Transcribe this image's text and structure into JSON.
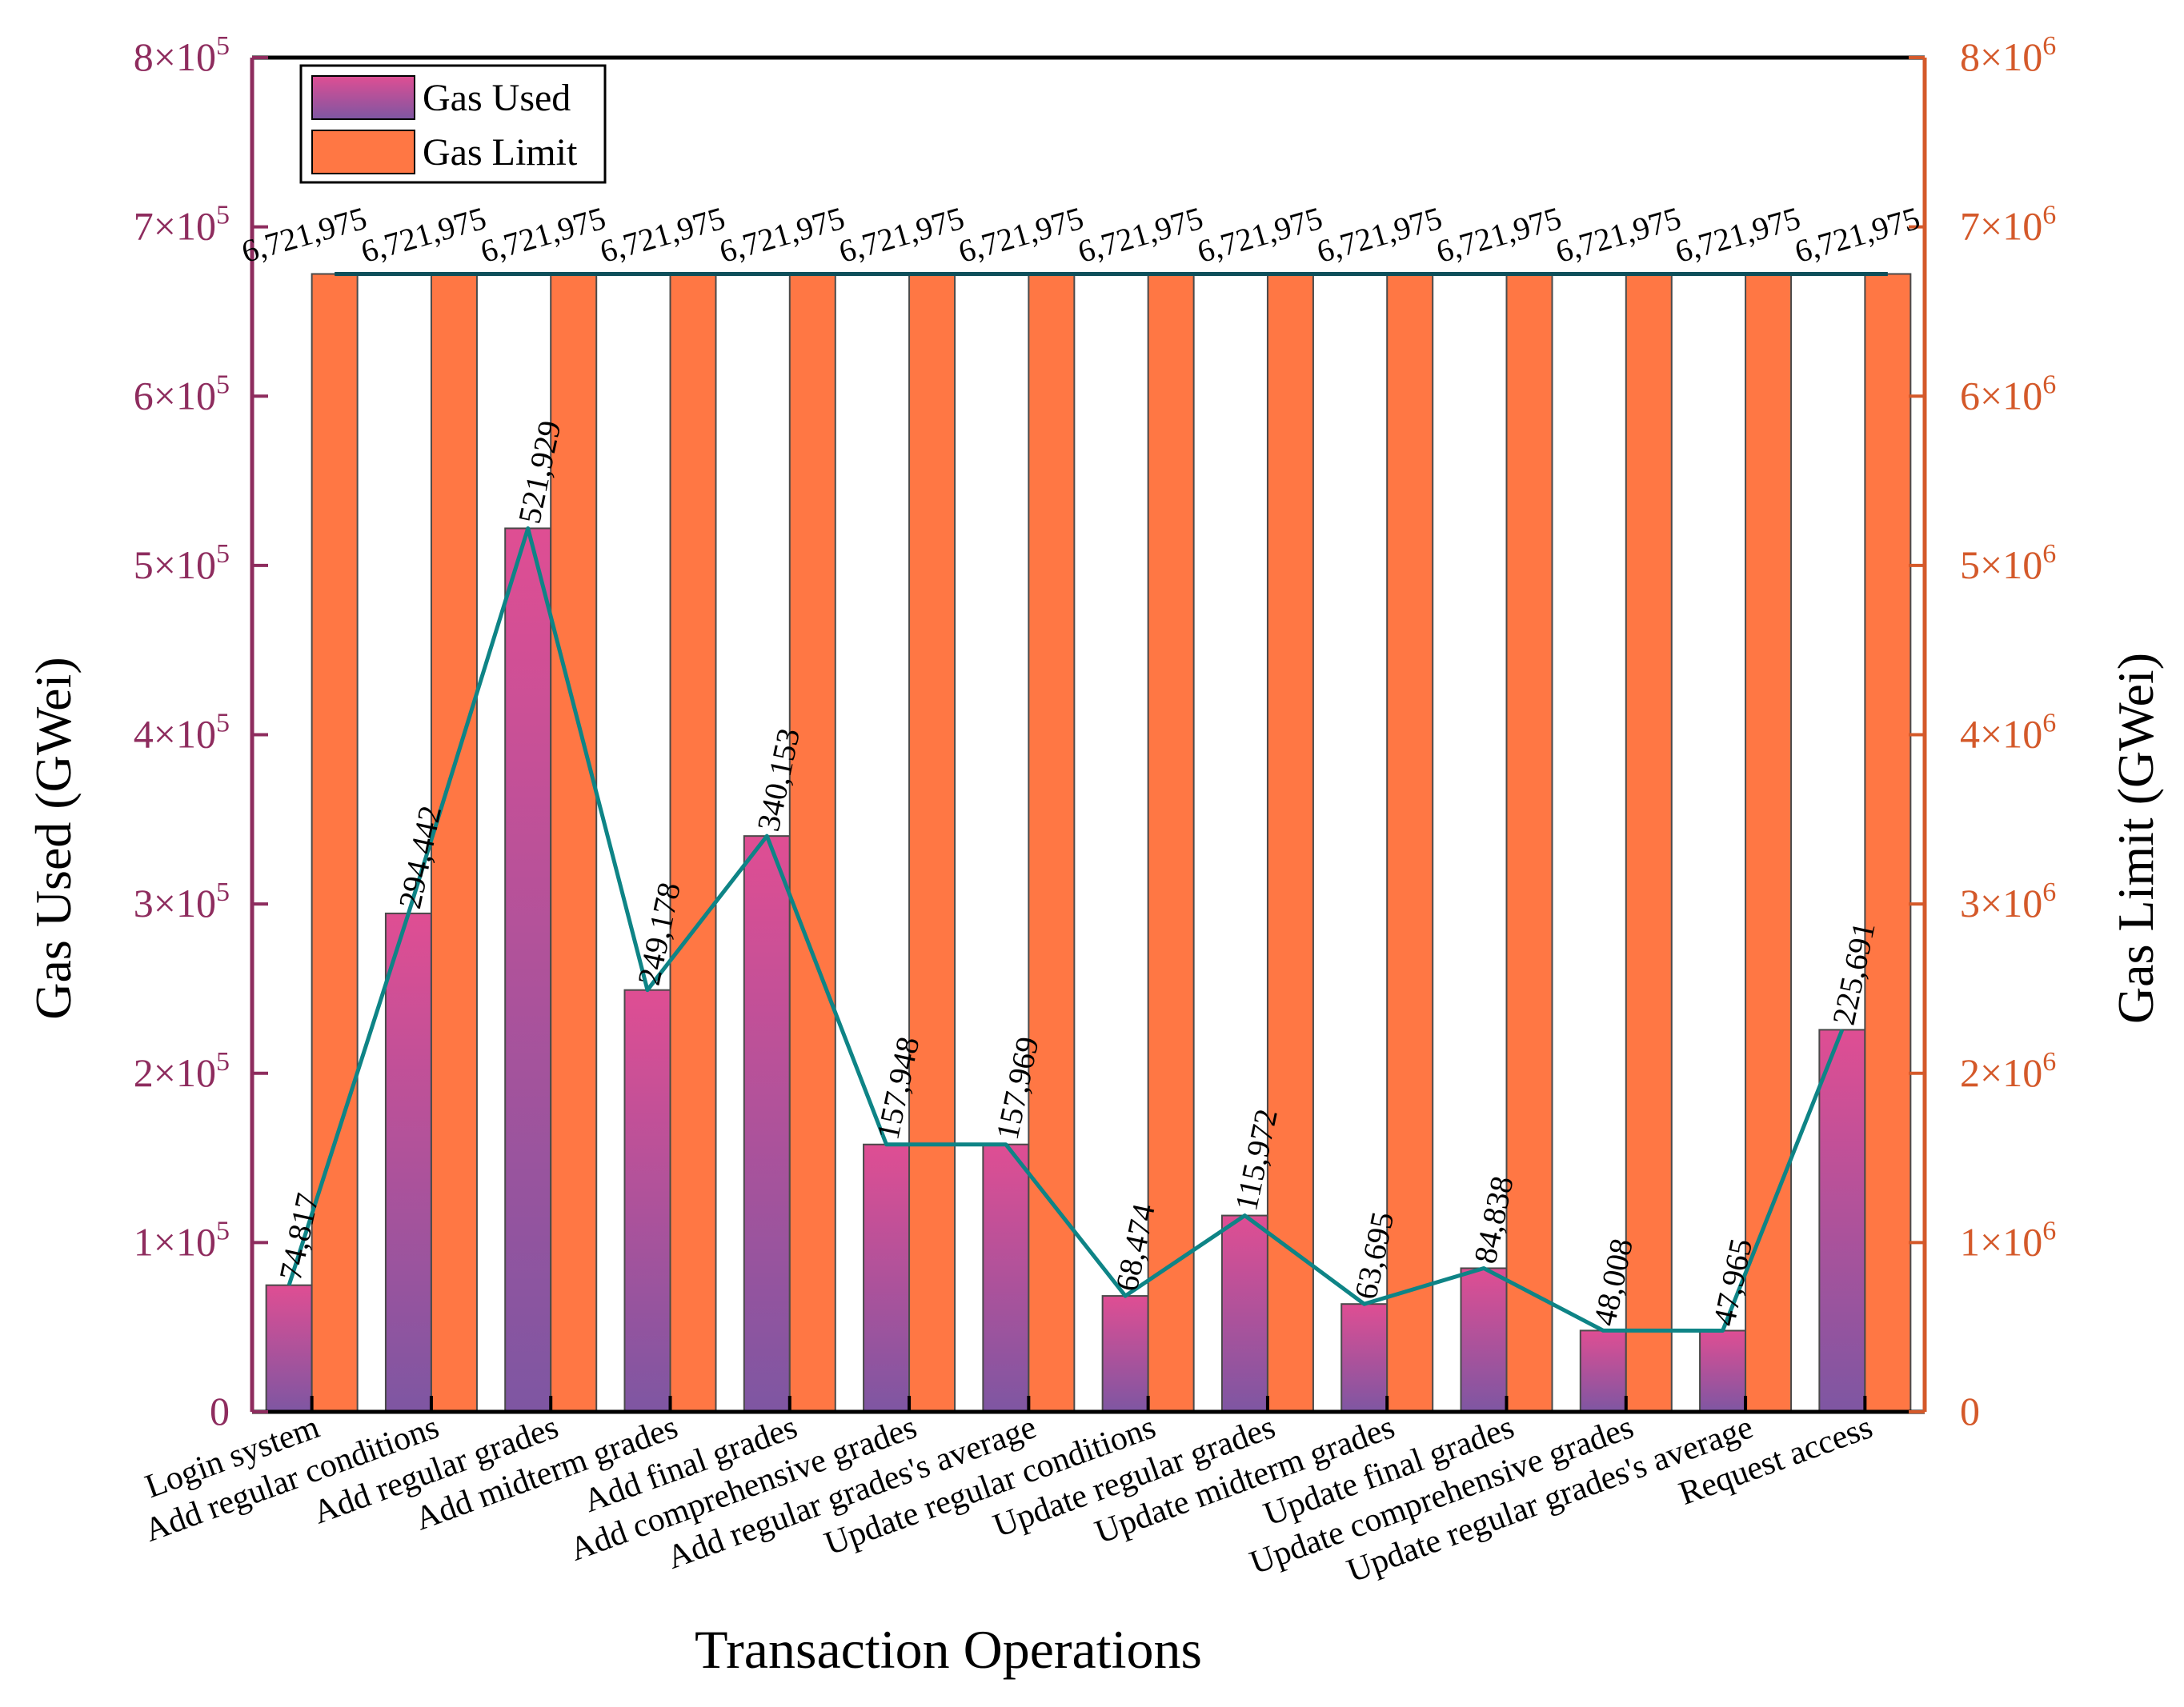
{
  "colors": {
    "left_axis": "#8E2C5E",
    "right_axis": "#D4592A",
    "gas_used_top": "#DF4E93",
    "gas_used_bottom": "#7E56A2",
    "gas_limit": "#FF7744",
    "line": "#0E8486",
    "limit_line": "#0E4F5A"
  },
  "chart_data": {
    "type": "bar",
    "title": "",
    "xlabel": "Transaction Operations",
    "ylabel": "Gas Used (GWei)",
    "y2label": "Gas Limit (GWei)",
    "ylim": [
      0,
      800000
    ],
    "y2lim": [
      0,
      8000000
    ],
    "grid": false,
    "legend_position": "top-left",
    "categories": [
      "Login system",
      "Add regular conditions",
      "Add regular grades",
      "Add midterm grades",
      "Add final grades",
      "Add comprehensive grades",
      "Add regular grades's average",
      "Update regular conditions",
      "Update regular grades",
      "Update midterm grades",
      "Update final grades",
      "Update comprehensive grades",
      "Update regular grades's average",
      "Request access"
    ],
    "series": [
      {
        "name": "Gas Used",
        "axis": "left",
        "values": [
          74817,
          294442,
          521929,
          249178,
          340153,
          157948,
          157969,
          68474,
          115972,
          63695,
          84838,
          48008,
          47965,
          225691
        ],
        "labels": [
          "74,817",
          "294,442",
          "521,929",
          "249,178",
          "340,153",
          "157,948",
          "157,969",
          "68,474",
          "115,972",
          "63,695",
          "84,838",
          "48,008",
          "47,965",
          "225,691"
        ]
      },
      {
        "name": "Gas Limit",
        "axis": "right",
        "values": [
          6721975,
          6721975,
          6721975,
          6721975,
          6721975,
          6721975,
          6721975,
          6721975,
          6721975,
          6721975,
          6721975,
          6721975,
          6721975,
          6721975
        ],
        "labels": [
          "6,721,975",
          "6,721,975",
          "6,721,975",
          "6,721,975",
          "6,721,975",
          "6,721,975",
          "6,721,975",
          "6,721,975",
          "6,721,975",
          "6,721,975",
          "6,721,975",
          "6,721,975",
          "6,721,975",
          "6,721,975"
        ]
      }
    ],
    "left_ticks": [
      {
        "value": 0,
        "mant": "0",
        "exp": ""
      },
      {
        "value": 100000,
        "mant": "1×10",
        "exp": "5"
      },
      {
        "value": 200000,
        "mant": "2×10",
        "exp": "5"
      },
      {
        "value": 300000,
        "mant": "3×10",
        "exp": "5"
      },
      {
        "value": 400000,
        "mant": "4×10",
        "exp": "5"
      },
      {
        "value": 500000,
        "mant": "5×10",
        "exp": "5"
      },
      {
        "value": 600000,
        "mant": "6×10",
        "exp": "5"
      },
      {
        "value": 700000,
        "mant": "7×10",
        "exp": "5"
      },
      {
        "value": 800000,
        "mant": "8×10",
        "exp": "5"
      }
    ],
    "right_ticks": [
      {
        "value": 0,
        "mant": "0",
        "exp": ""
      },
      {
        "value": 1000000,
        "mant": "1×10",
        "exp": "6"
      },
      {
        "value": 2000000,
        "mant": "2×10",
        "exp": "6"
      },
      {
        "value": 3000000,
        "mant": "3×10",
        "exp": "6"
      },
      {
        "value": 4000000,
        "mant": "4×10",
        "exp": "6"
      },
      {
        "value": 5000000,
        "mant": "5×10",
        "exp": "6"
      },
      {
        "value": 6000000,
        "mant": "6×10",
        "exp": "6"
      },
      {
        "value": 7000000,
        "mant": "7×10",
        "exp": "6"
      },
      {
        "value": 8000000,
        "mant": "8×10",
        "exp": "6"
      }
    ]
  }
}
